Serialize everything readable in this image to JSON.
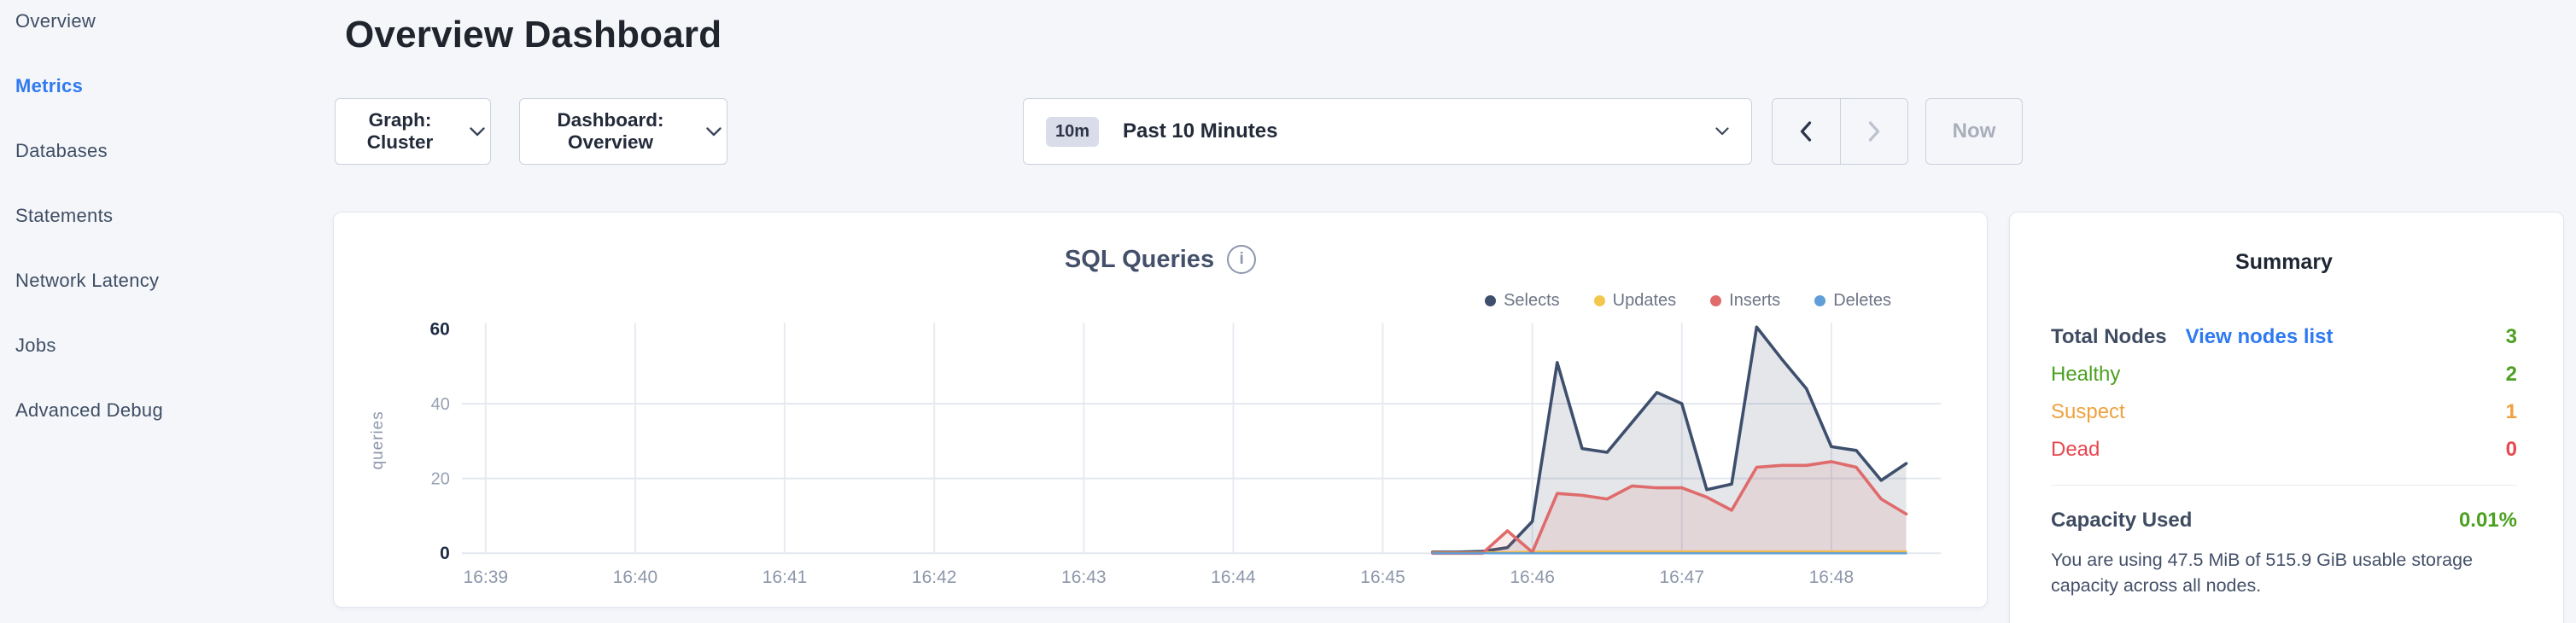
{
  "colors": {
    "accent_blue": "#2f7af0",
    "link_blue": "#2f7af0",
    "healthy_green": "#4ca021",
    "suspect_orange": "#efa13d",
    "dead_red": "#e8474f"
  },
  "sidebar": {
    "items": [
      {
        "label": "Overview",
        "active": false
      },
      {
        "label": "Metrics",
        "active": true
      },
      {
        "label": "Databases",
        "active": false
      },
      {
        "label": "Statements",
        "active": false
      },
      {
        "label": "Network Latency",
        "active": false
      },
      {
        "label": "Jobs",
        "active": false
      },
      {
        "label": "Advanced Debug",
        "active": false
      }
    ]
  },
  "header": {
    "title": "Overview Dashboard"
  },
  "controls": {
    "graph_button": "Graph: Cluster",
    "dashboard_button": "Dashboard: Overview",
    "time_range": {
      "badge": "10m",
      "label": "Past 10 Minutes"
    },
    "now_button": "Now"
  },
  "chart_card": {
    "title": "SQL Queries",
    "info_icon": "i"
  },
  "chart_data": {
    "type": "area",
    "title": "SQL Queries",
    "ylabel": "queries",
    "ylim": [
      0,
      60
    ],
    "y_ticks": [
      0,
      20,
      40,
      60
    ],
    "x_ticks": [
      "16:39",
      "16:40",
      "16:41",
      "16:42",
      "16:43",
      "16:44",
      "16:45",
      "16:46",
      "16:47",
      "16:48"
    ],
    "grid": true,
    "legend_position": "top-right",
    "series_start_time": "16:45:20",
    "series_interval_seconds": 10,
    "series": [
      {
        "name": "Selects",
        "color": "#3e4f6d",
        "values": [
          0.3,
          0.3,
          0.5,
          1.5,
          8.5,
          51,
          28,
          27,
          35,
          43,
          40,
          17,
          18.5,
          60.5,
          52,
          44,
          28.5,
          27.5,
          19.5,
          24
        ]
      },
      {
        "name": "Updates",
        "color": "#f2c74b",
        "values": [
          0.2,
          0.2,
          0.2,
          0.3,
          0.4,
          0.5,
          0.5,
          0.5,
          0.5,
          0.5,
          0.5,
          0.5,
          0.5,
          0.5,
          0.5,
          0.5,
          0.5,
          0.5,
          0.5,
          0.5
        ]
      },
      {
        "name": "Inserts",
        "color": "#df6b6b",
        "values": [
          0,
          0,
          0,
          6,
          0.3,
          16,
          15.5,
          14.5,
          18,
          17.5,
          17.5,
          15,
          11.5,
          23,
          23.5,
          23.5,
          24.5,
          23,
          14.5,
          10.5
        ]
      },
      {
        "name": "Deletes",
        "color": "#5f9ed6",
        "values": [
          0,
          0,
          0,
          0,
          0,
          0,
          0,
          0,
          0,
          0,
          0,
          0,
          0,
          0,
          0,
          0,
          0,
          0,
          0,
          0
        ]
      }
    ]
  },
  "summary": {
    "title": "Summary",
    "total_nodes": {
      "label": "Total Nodes",
      "link": "View nodes list",
      "value": "3"
    },
    "rows": [
      {
        "label": "Healthy",
        "value": "2",
        "status": "healthy"
      },
      {
        "label": "Suspect",
        "value": "1",
        "status": "suspect"
      },
      {
        "label": "Dead",
        "value": "0",
        "status": "dead"
      }
    ],
    "capacity": {
      "label": "Capacity Used",
      "value": "0.01%"
    },
    "description": "You are using 47.5 MiB of 515.9 GiB usable storage capacity across all nodes."
  }
}
